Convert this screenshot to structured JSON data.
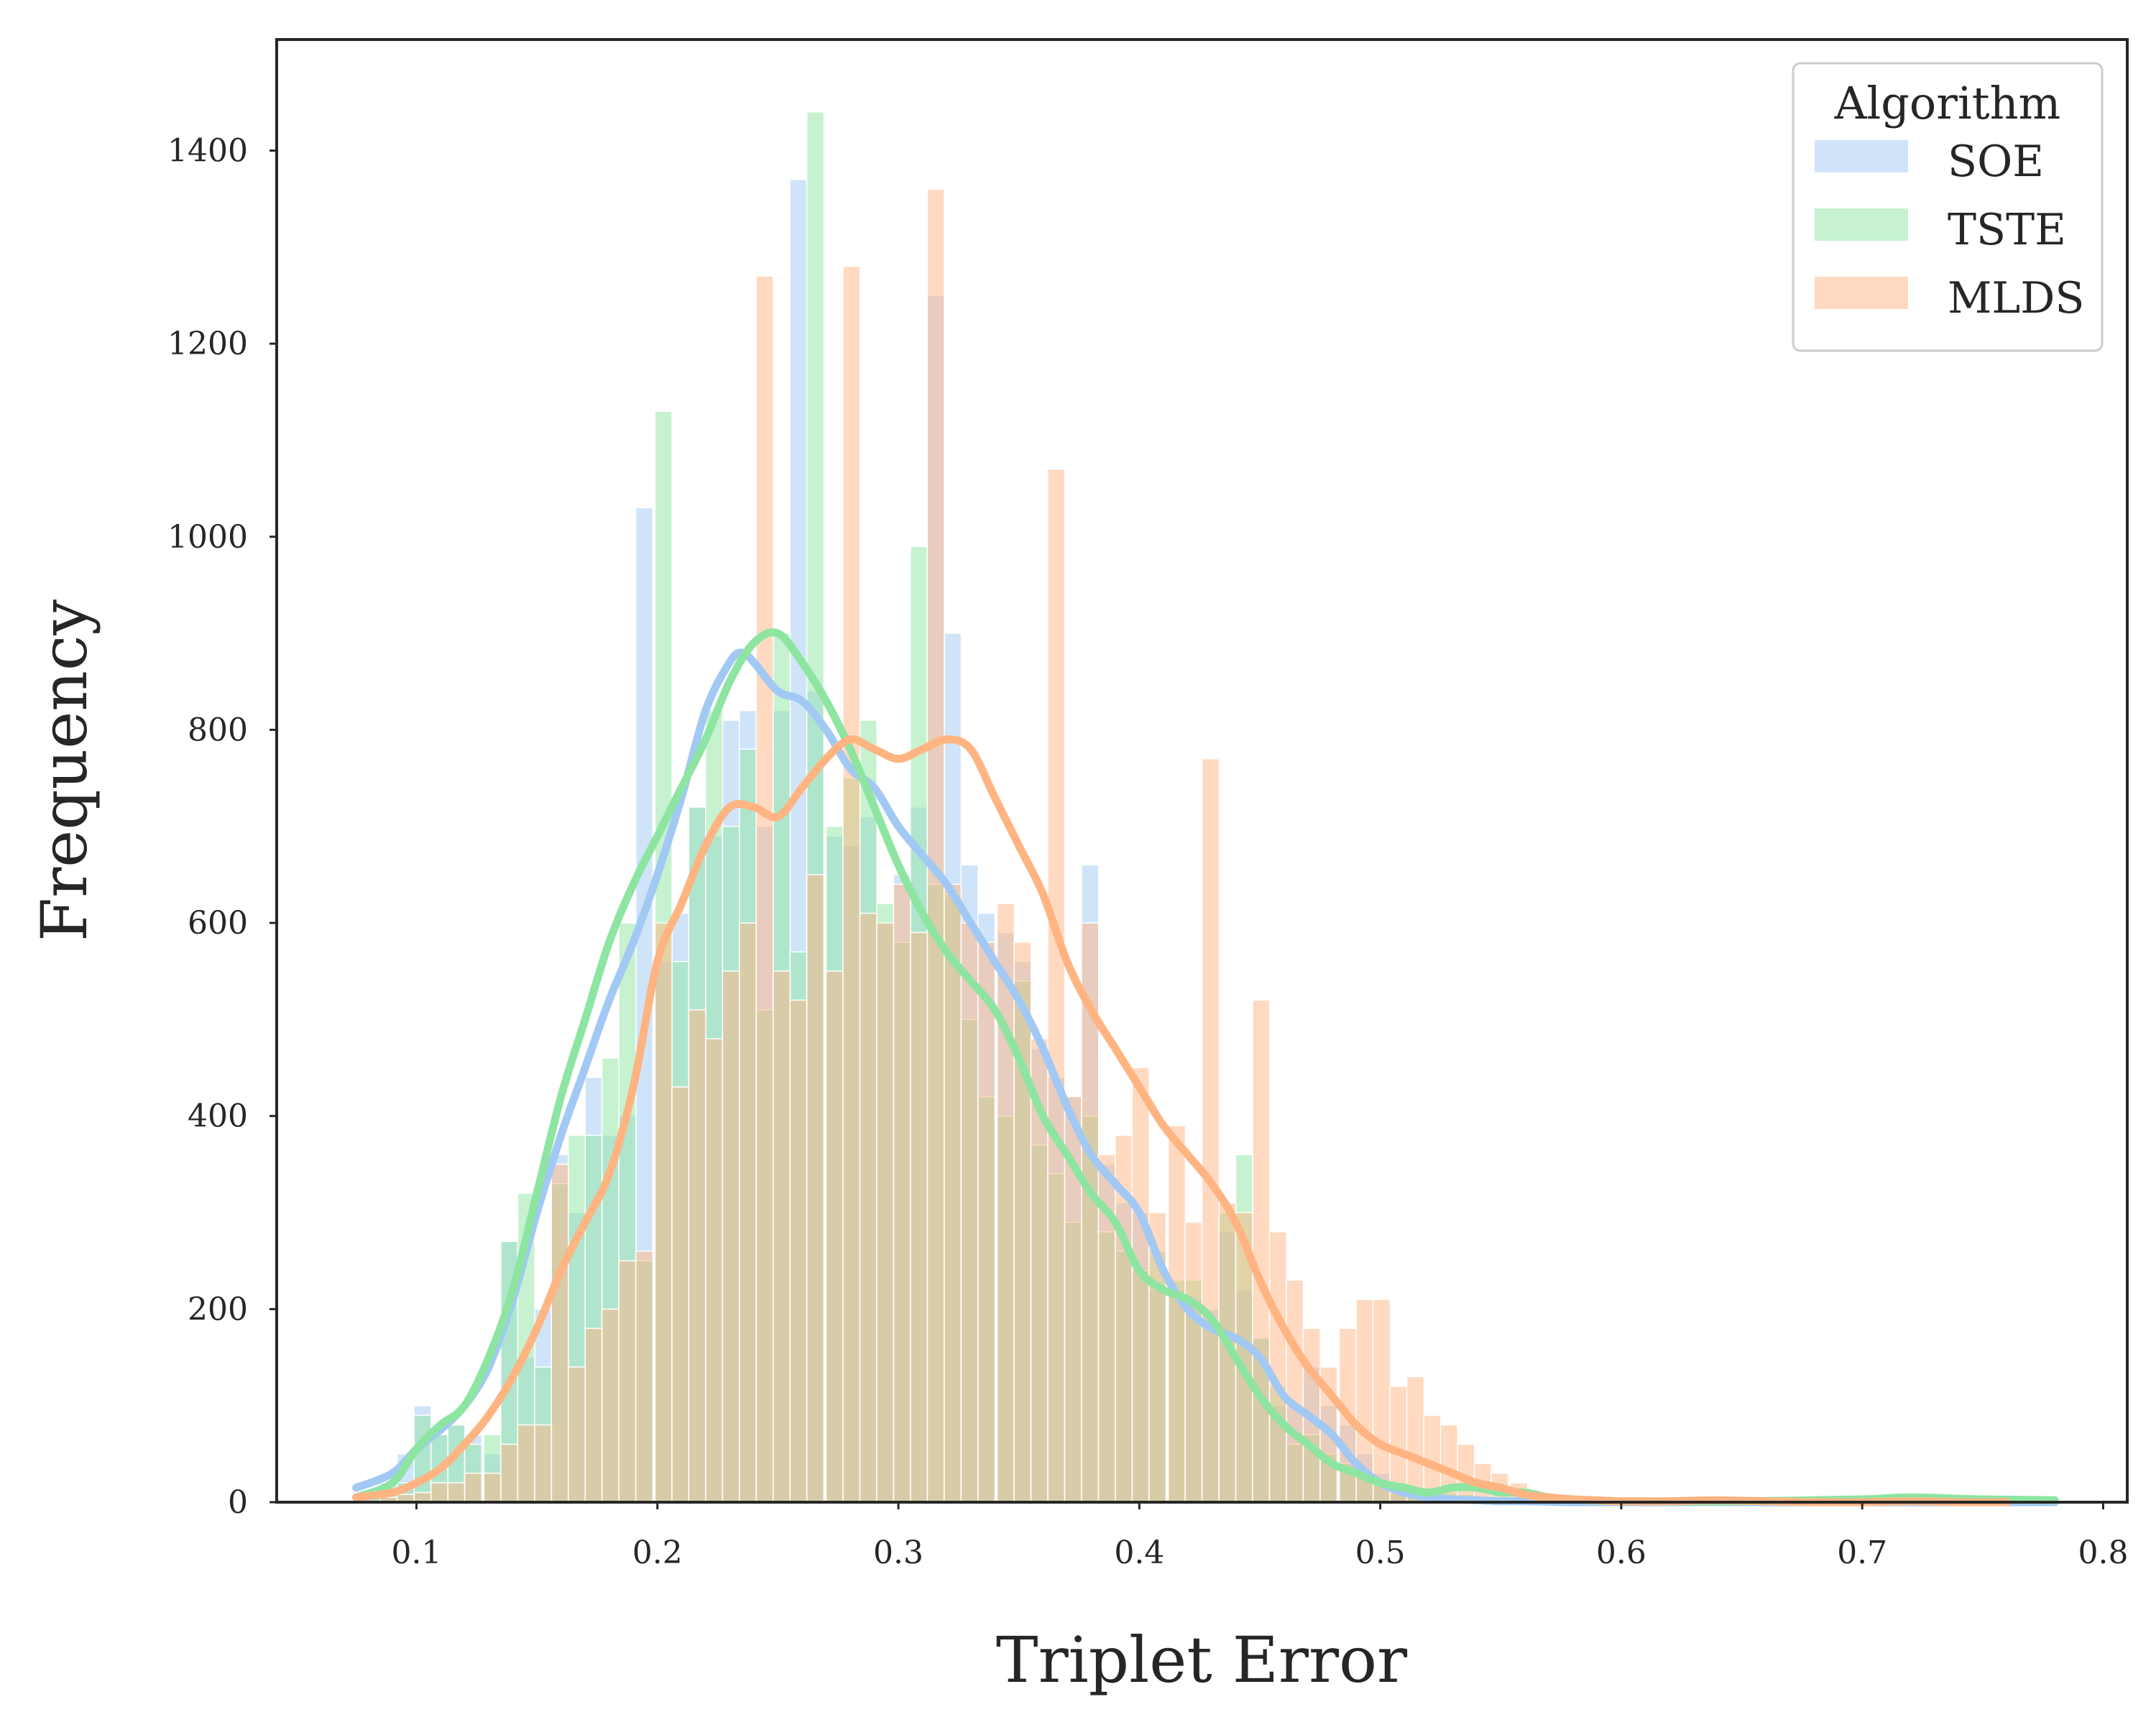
{
  "chart_data": {
    "type": "histogram",
    "title": "",
    "xlabel": "Triplet Error",
    "ylabel": "Frequency",
    "xlim": [
      0.042,
      0.81
    ],
    "ylim": [
      0,
      1515
    ],
    "xticks": [
      "0.1",
      "0.2",
      "0.3",
      "0.4",
      "0.5",
      "0.6",
      "0.7",
      "0.8"
    ],
    "yticks": [
      "0",
      "200",
      "400",
      "600",
      "800",
      "1000",
      "1200",
      "1400"
    ],
    "grid": false,
    "legend": {
      "title": "Algorithm",
      "position": "top-right"
    },
    "bin_width": 0.0071,
    "series": [
      {
        "name": "SOE",
        "color": "#a1c9f4",
        "bin_starts": [
          0.078,
          0.085,
          0.092,
          0.099,
          0.106,
          0.113,
          0.12,
          0.128,
          0.135,
          0.142,
          0.149,
          0.156,
          0.163,
          0.17,
          0.177,
          0.184,
          0.191,
          0.199,
          0.206,
          0.213,
          0.22,
          0.227,
          0.234,
          0.241,
          0.248,
          0.255,
          0.262,
          0.27,
          0.277,
          0.284,
          0.291,
          0.298,
          0.305,
          0.312,
          0.319,
          0.326,
          0.333,
          0.341,
          0.348,
          0.355,
          0.362,
          0.369,
          0.376,
          0.383,
          0.39,
          0.397,
          0.404,
          0.412,
          0.419,
          0.426,
          0.433,
          0.44,
          0.447,
          0.454,
          0.461,
          0.468,
          0.475,
          0.483,
          0.49,
          0.497,
          0.504,
          0.511,
          0.518,
          0.525,
          0.532,
          0.539,
          0.546,
          0.554,
          0.561
        ],
        "values": [
          10,
          20,
          50,
          100,
          70,
          80,
          70,
          50,
          270,
          150,
          200,
          360,
          300,
          440,
          380,
          400,
          1030,
          560,
          610,
          720,
          690,
          810,
          820,
          700,
          820,
          1370,
          840,
          690,
          680,
          710,
          600,
          650,
          720,
          1250,
          900,
          660,
          610,
          590,
          560,
          470,
          440,
          420,
          660,
          350,
          310,
          300,
          220,
          220,
          210,
          200,
          280,
          220,
          170,
          100,
          100,
          140,
          100,
          80,
          50,
          30,
          10,
          10,
          10,
          5,
          5,
          5,
          3,
          3,
          3
        ]
      },
      {
        "name": "TSTE",
        "color": "#8de5a1",
        "bin_starts": [
          0.078,
          0.085,
          0.092,
          0.099,
          0.106,
          0.113,
          0.12,
          0.128,
          0.135,
          0.142,
          0.149,
          0.156,
          0.163,
          0.17,
          0.177,
          0.184,
          0.191,
          0.199,
          0.206,
          0.213,
          0.22,
          0.227,
          0.234,
          0.241,
          0.248,
          0.255,
          0.262,
          0.27,
          0.277,
          0.284,
          0.291,
          0.298,
          0.305,
          0.312,
          0.319,
          0.326,
          0.333,
          0.341,
          0.348,
          0.355,
          0.362,
          0.369,
          0.376,
          0.383,
          0.39,
          0.397,
          0.404,
          0.412,
          0.419,
          0.426,
          0.433,
          0.44,
          0.447,
          0.454,
          0.461,
          0.468,
          0.475,
          0.483,
          0.49,
          0.497,
          0.504,
          0.511,
          0.518,
          0.525,
          0.532,
          0.539,
          0.546,
          0.554,
          0.561,
          0.568,
          0.575,
          0.71,
          0.717,
          0.767,
          0.774
        ],
        "values": [
          5,
          10,
          20,
          90,
          70,
          80,
          60,
          70,
          270,
          320,
          140,
          330,
          380,
          380,
          460,
          600,
          250,
          1130,
          560,
          720,
          820,
          700,
          780,
          510,
          900,
          570,
          1440,
          700,
          750,
          810,
          620,
          580,
          990,
          640,
          630,
          500,
          420,
          400,
          540,
          370,
          340,
          290,
          400,
          280,
          260,
          240,
          260,
          230,
          230,
          190,
          300,
          360,
          170,
          120,
          60,
          70,
          50,
          40,
          30,
          20,
          20,
          15,
          12,
          10,
          8,
          6,
          5,
          4,
          3,
          2,
          2,
          4,
          4,
          5,
          6
        ]
      },
      {
        "name": "MLDS",
        "color": "#ffb482",
        "bin_starts": [
          0.078,
          0.085,
          0.092,
          0.099,
          0.106,
          0.113,
          0.12,
          0.128,
          0.135,
          0.142,
          0.149,
          0.156,
          0.163,
          0.17,
          0.177,
          0.184,
          0.191,
          0.199,
          0.206,
          0.213,
          0.22,
          0.227,
          0.234,
          0.241,
          0.248,
          0.255,
          0.262,
          0.27,
          0.277,
          0.284,
          0.291,
          0.298,
          0.305,
          0.312,
          0.319,
          0.326,
          0.333,
          0.341,
          0.348,
          0.355,
          0.362,
          0.369,
          0.376,
          0.383,
          0.39,
          0.397,
          0.404,
          0.412,
          0.419,
          0.426,
          0.433,
          0.44,
          0.447,
          0.454,
          0.461,
          0.468,
          0.475,
          0.483,
          0.49,
          0.497,
          0.504,
          0.511,
          0.518,
          0.525,
          0.532,
          0.539,
          0.546,
          0.554,
          0.561,
          0.568,
          0.575
        ],
        "values": [
          0,
          5,
          8,
          10,
          20,
          20,
          30,
          30,
          60,
          80,
          80,
          350,
          140,
          180,
          200,
          250,
          260,
          600,
          430,
          510,
          480,
          550,
          600,
          1270,
          550,
          520,
          650,
          550,
          1280,
          610,
          600,
          640,
          590,
          1360,
          640,
          600,
          580,
          620,
          580,
          480,
          1070,
          420,
          600,
          360,
          380,
          450,
          300,
          390,
          290,
          770,
          310,
          300,
          520,
          280,
          230,
          180,
          140,
          180,
          210,
          210,
          120,
          130,
          90,
          80,
          60,
          40,
          30,
          20,
          10,
          5,
          3
        ]
      }
    ],
    "kde": [
      {
        "name": "SOE",
        "color": "#a1c9f4",
        "x": [
          0.075,
          0.09,
          0.1,
          0.11,
          0.12,
          0.13,
          0.14,
          0.15,
          0.16,
          0.17,
          0.18,
          0.19,
          0.2,
          0.21,
          0.22,
          0.23,
          0.235,
          0.24,
          0.25,
          0.26,
          0.27,
          0.28,
          0.29,
          0.3,
          0.31,
          0.32,
          0.33,
          0.34,
          0.35,
          0.36,
          0.37,
          0.38,
          0.39,
          0.4,
          0.41,
          0.42,
          0.43,
          0.44,
          0.45,
          0.46,
          0.47,
          0.48,
          0.49,
          0.5,
          0.51,
          0.52,
          0.53,
          0.54,
          0.55,
          0.56,
          0.58,
          0.6,
          0.65,
          0.7,
          0.75,
          0.78
        ],
        "y": [
          15,
          30,
          55,
          75,
          100,
          140,
          210,
          300,
          380,
          450,
          520,
          580,
          650,
          730,
          820,
          870,
          880,
          870,
          840,
          830,
          800,
          760,
          740,
          700,
          670,
          640,
          600,
          560,
          520,
          470,
          410,
          360,
          330,
          300,
          240,
          200,
          180,
          170,
          150,
          110,
          90,
          70,
          40,
          20,
          10,
          5,
          3,
          2,
          1,
          1,
          0,
          0,
          0,
          0,
          0,
          0
        ]
      },
      {
        "name": "TSTE",
        "color": "#8de5a1",
        "x": [
          0.075,
          0.09,
          0.1,
          0.11,
          0.12,
          0.13,
          0.14,
          0.15,
          0.16,
          0.17,
          0.18,
          0.19,
          0.2,
          0.21,
          0.22,
          0.23,
          0.24,
          0.25,
          0.26,
          0.27,
          0.28,
          0.29,
          0.3,
          0.31,
          0.32,
          0.33,
          0.34,
          0.35,
          0.36,
          0.37,
          0.38,
          0.39,
          0.4,
          0.41,
          0.42,
          0.43,
          0.44,
          0.45,
          0.46,
          0.47,
          0.48,
          0.49,
          0.5,
          0.51,
          0.52,
          0.53,
          0.54,
          0.55,
          0.56,
          0.57,
          0.58,
          0.6,
          0.65,
          0.7,
          0.72,
          0.75,
          0.78
        ],
        "y": [
          5,
          20,
          55,
          80,
          100,
          150,
          220,
          320,
          420,
          500,
          580,
          640,
          690,
          740,
          790,
          850,
          890,
          900,
          870,
          830,
          780,
          720,
          660,
          610,
          570,
          540,
          510,
          460,
          400,
          360,
          320,
          290,
          240,
          220,
          210,
          190,
          150,
          110,
          80,
          60,
          40,
          30,
          20,
          15,
          10,
          15,
          15,
          10,
          10,
          5,
          3,
          1,
          1,
          3,
          5,
          3,
          2
        ]
      },
      {
        "name": "MLDS",
        "color": "#ffb482",
        "x": [
          0.075,
          0.09,
          0.1,
          0.11,
          0.12,
          0.13,
          0.14,
          0.15,
          0.16,
          0.17,
          0.18,
          0.19,
          0.2,
          0.21,
          0.22,
          0.23,
          0.24,
          0.25,
          0.26,
          0.27,
          0.28,
          0.29,
          0.3,
          0.31,
          0.32,
          0.33,
          0.34,
          0.35,
          0.36,
          0.37,
          0.38,
          0.39,
          0.4,
          0.41,
          0.42,
          0.43,
          0.44,
          0.45,
          0.46,
          0.47,
          0.48,
          0.49,
          0.5,
          0.51,
          0.52,
          0.53,
          0.54,
          0.55,
          0.56,
          0.57,
          0.58,
          0.59,
          0.6,
          0.62,
          0.64,
          0.66,
          0.68,
          0.7,
          0.72,
          0.74,
          0.76
        ],
        "y": [
          5,
          10,
          20,
          35,
          60,
          90,
          130,
          180,
          240,
          290,
          340,
          430,
          560,
          620,
          680,
          720,
          720,
          710,
          740,
          770,
          790,
          780,
          770,
          780,
          790,
          780,
          730,
          680,
          630,
          560,
          510,
          470,
          430,
          390,
          360,
          330,
          290,
          230,
          180,
          140,
          110,
          80,
          60,
          50,
          40,
          30,
          20,
          15,
          8,
          5,
          3,
          2,
          1,
          1,
          2,
          1,
          0,
          0,
          1,
          0,
          0
        ]
      }
    ]
  }
}
